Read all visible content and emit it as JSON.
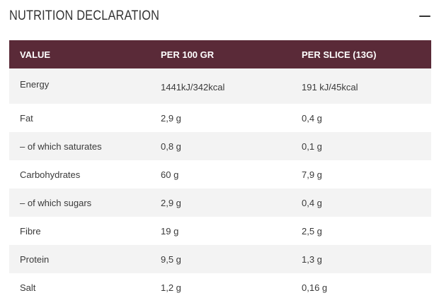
{
  "header": {
    "title": "NUTRITION DECLARATION"
  },
  "table": {
    "columns": [
      "VALUE",
      "PER 100 GR",
      "PER SLICE (13G)"
    ],
    "rows": [
      {
        "name": "Energy",
        "per100": "1441kJ/342kcal",
        "perSlice": "191 kJ/45kcal"
      },
      {
        "name": "Fat",
        "per100": "2,9 g",
        "perSlice": "0,4 g"
      },
      {
        "name": "– of which saturates",
        "per100": "0,8 g",
        "perSlice": "0,1 g"
      },
      {
        "name": "Carbohydrates",
        "per100": "60 g",
        "perSlice": "7,9 g"
      },
      {
        "name": "– of which sugars",
        "per100": "2,9 g",
        "perSlice": "0,4 g"
      },
      {
        "name": "Fibre",
        "per100": "19 g",
        "perSlice": "2,5 g"
      },
      {
        "name": "Protein",
        "per100": "9,5 g",
        "perSlice": "1,3 g"
      },
      {
        "name": "Salt",
        "per100": "1,2 g",
        "perSlice": "0,16 g"
      }
    ]
  },
  "colors": {
    "header_bg": "#5a2a38",
    "row_alt_bg": "#f3f3f3"
  },
  "icons": {
    "collapse": "minus-icon"
  }
}
